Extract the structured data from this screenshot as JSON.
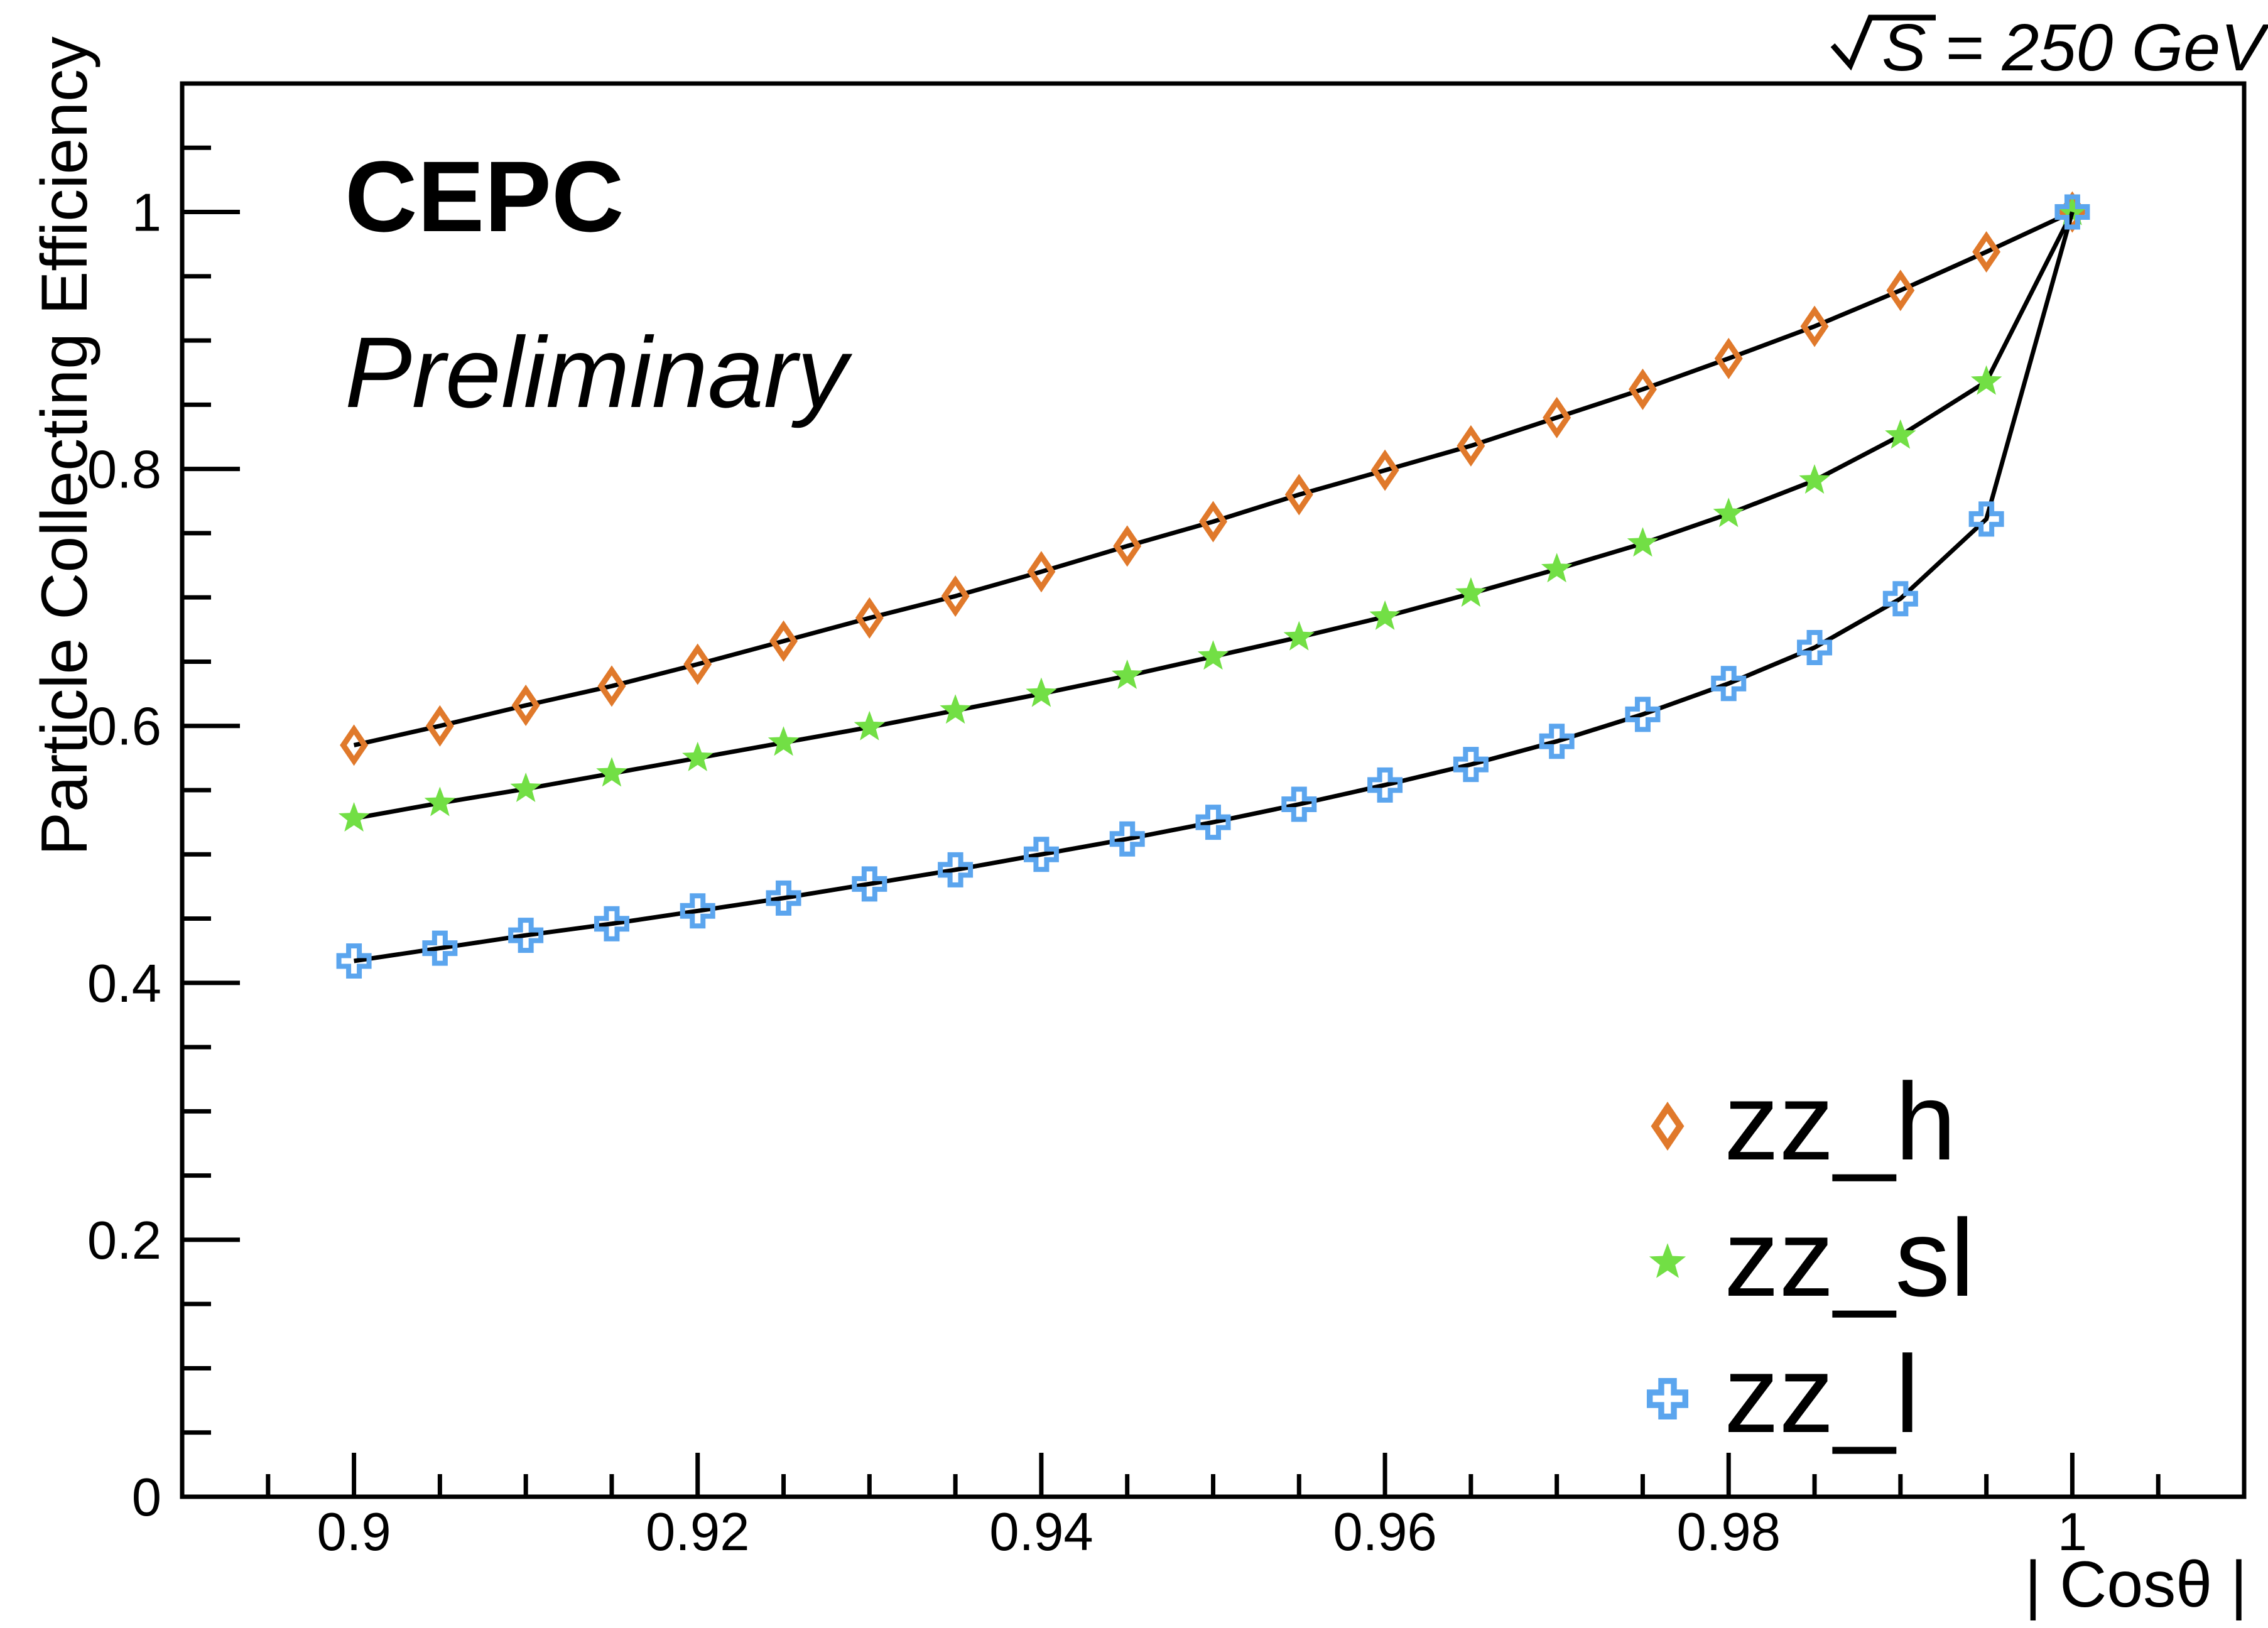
{
  "chart_data": {
    "type": "line",
    "title": "CEPC",
    "subtitle": "Preliminary",
    "annotation": "√S = 250 GeV",
    "annotation_radical": "√",
    "annotation_text": "S = 250 GeV",
    "xlabel": "| Cosθ |",
    "ylabel": "Particle Collecting Efficiency",
    "xlim": [
      0.89,
      1.01
    ],
    "ylim": [
      0,
      1.1
    ],
    "grid": false,
    "legend_position": "bottom-right-inside",
    "x_major_ticks": [
      0.9,
      0.92,
      0.94,
      0.96,
      0.98,
      1.0
    ],
    "x_major_tick_labels": [
      "0.9",
      "0.92",
      "0.94",
      "0.96",
      "0.98",
      "1"
    ],
    "x_minor_tick_step": 0.005,
    "y_major_ticks": [
      0,
      0.2,
      0.4,
      0.6,
      0.8,
      1.0
    ],
    "y_major_tick_labels": [
      "0",
      "0.2",
      "0.4",
      "0.6",
      "0.8",
      "1"
    ],
    "y_minor_tick_step": 0.05,
    "line_color": "#000000",
    "x": [
      0.9,
      0.905,
      0.91,
      0.915,
      0.92,
      0.925,
      0.93,
      0.935,
      0.94,
      0.945,
      0.95,
      0.955,
      0.96,
      0.965,
      0.97,
      0.975,
      0.98,
      0.985,
      0.99,
      0.995,
      1.0
    ],
    "series": [
      {
        "name": "zz_h",
        "marker": "open-diamond",
        "color": "#E0792B",
        "values": [
          0.585,
          0.6,
          0.616,
          0.631,
          0.648,
          0.666,
          0.684,
          0.701,
          0.72,
          0.74,
          0.759,
          0.78,
          0.799,
          0.818,
          0.84,
          0.862,
          0.886,
          0.911,
          0.939,
          0.969,
          1.0
        ]
      },
      {
        "name": "zz_sl",
        "marker": "filled-star",
        "color": "#72DF45",
        "values": [
          0.528,
          0.54,
          0.551,
          0.563,
          0.575,
          0.587,
          0.599,
          0.612,
          0.625,
          0.639,
          0.654,
          0.669,
          0.685,
          0.703,
          0.722,
          0.742,
          0.765,
          0.791,
          0.826,
          0.868,
          1.0
        ]
      },
      {
        "name": "zz_l",
        "marker": "open-cross",
        "color": "#5BA5EE",
        "values": [
          0.417,
          0.427,
          0.437,
          0.446,
          0.456,
          0.466,
          0.477,
          0.488,
          0.5,
          0.512,
          0.525,
          0.539,
          0.554,
          0.57,
          0.588,
          0.609,
          0.633,
          0.661,
          0.699,
          0.761,
          1.0
        ]
      }
    ]
  }
}
